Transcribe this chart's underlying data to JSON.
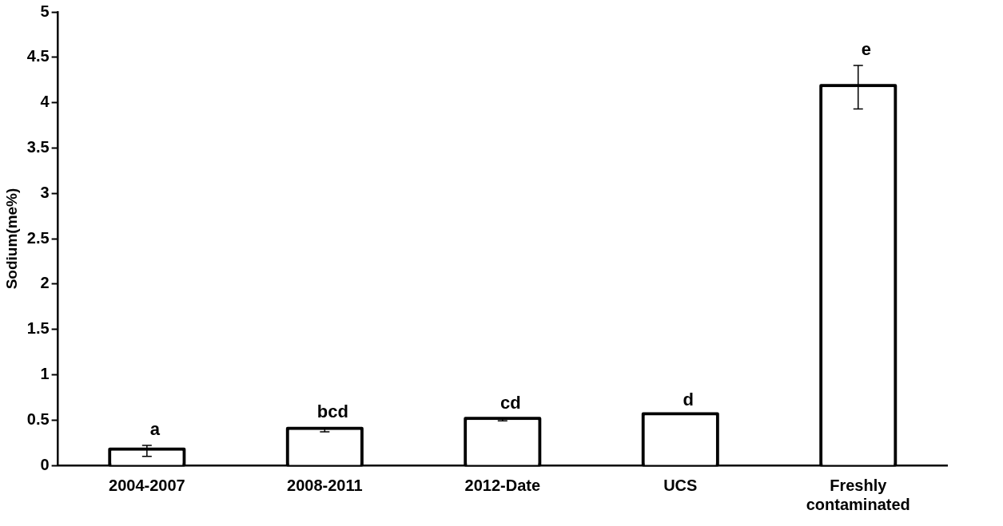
{
  "chart_data": {
    "type": "bar",
    "ylabel": "Sodium(me%)",
    "categories": [
      "2004-2007",
      "2008-2011",
      "2012-Date",
      "UCS",
      "Freshly contaminated"
    ],
    "values": [
      0.16,
      0.39,
      0.5,
      0.55,
      4.17
    ],
    "errors": [
      0.06,
      0.02,
      0.01,
      null,
      0.24
    ],
    "color": "#ffffff",
    "ylim": [
      0,
      5
    ],
    "yticks": [
      0,
      0.5,
      1,
      1.5,
      2,
      2.5,
      3,
      3.5,
      4,
      4.5,
      5
    ],
    "grid": false,
    "legend": false,
    "annotations": [
      {
        "text": "a",
        "x": "2004-2007",
        "y": 0.22
      },
      {
        "text": "bcd",
        "x": "2008-2011",
        "y": 0.41
      },
      {
        "text": "cd",
        "x": "2012-Date",
        "y": 0.51
      },
      {
        "text": "d",
        "x": "UCS",
        "y": 0.55
      },
      {
        "text": "e",
        "x": "Freshly contaminated",
        "y": 4.41
      }
    ]
  }
}
